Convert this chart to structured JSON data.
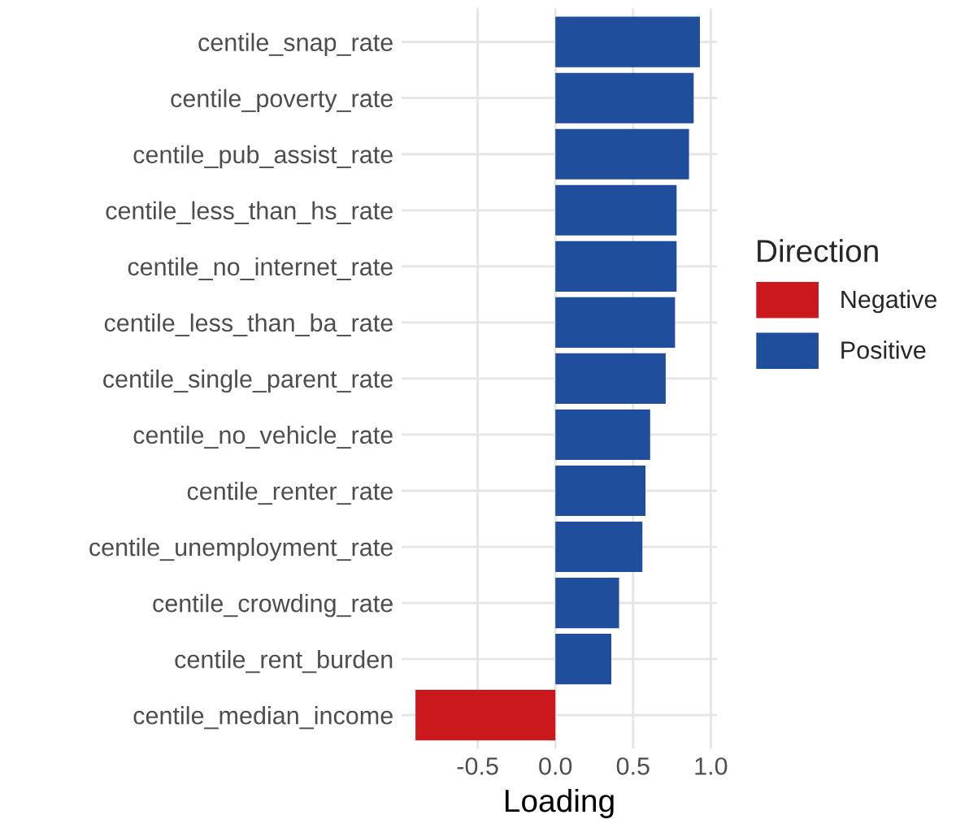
{
  "chart_data": {
    "type": "bar",
    "orientation": "horizontal",
    "xlabel": "Loading",
    "legend_title": "Direction",
    "legend": "right",
    "grid": true,
    "categories": [
      "centile_snap_rate",
      "centile_poverty_rate",
      "centile_pub_assist_rate",
      "centile_less_than_hs_rate",
      "centile_no_internet_rate",
      "centile_less_than_ba_rate",
      "centile_single_parent_rate",
      "centile_no_vehicle_rate",
      "centile_renter_rate",
      "centile_unemployment_rate",
      "centile_crowding_rate",
      "centile_rent_burden",
      "centile_median_income"
    ],
    "series": [
      {
        "name": "Negative",
        "color": "#cb181d",
        "values": [
          null,
          null,
          null,
          null,
          null,
          null,
          null,
          null,
          null,
          null,
          null,
          null,
          -0.9
        ]
      },
      {
        "name": "Positive",
        "color": "#1f4e9c",
        "values": [
          0.93,
          0.89,
          0.86,
          0.78,
          0.78,
          0.77,
          0.71,
          0.61,
          0.58,
          0.56,
          0.41,
          0.36,
          null
        ]
      }
    ],
    "xlim": [
      -0.99,
      1.04
    ],
    "xticks": [
      -0.5,
      {
        "value": 0,
        "label": "0.0"
      },
      0.5,
      {
        "value": 1,
        "label": "1.0"
      }
    ]
  }
}
